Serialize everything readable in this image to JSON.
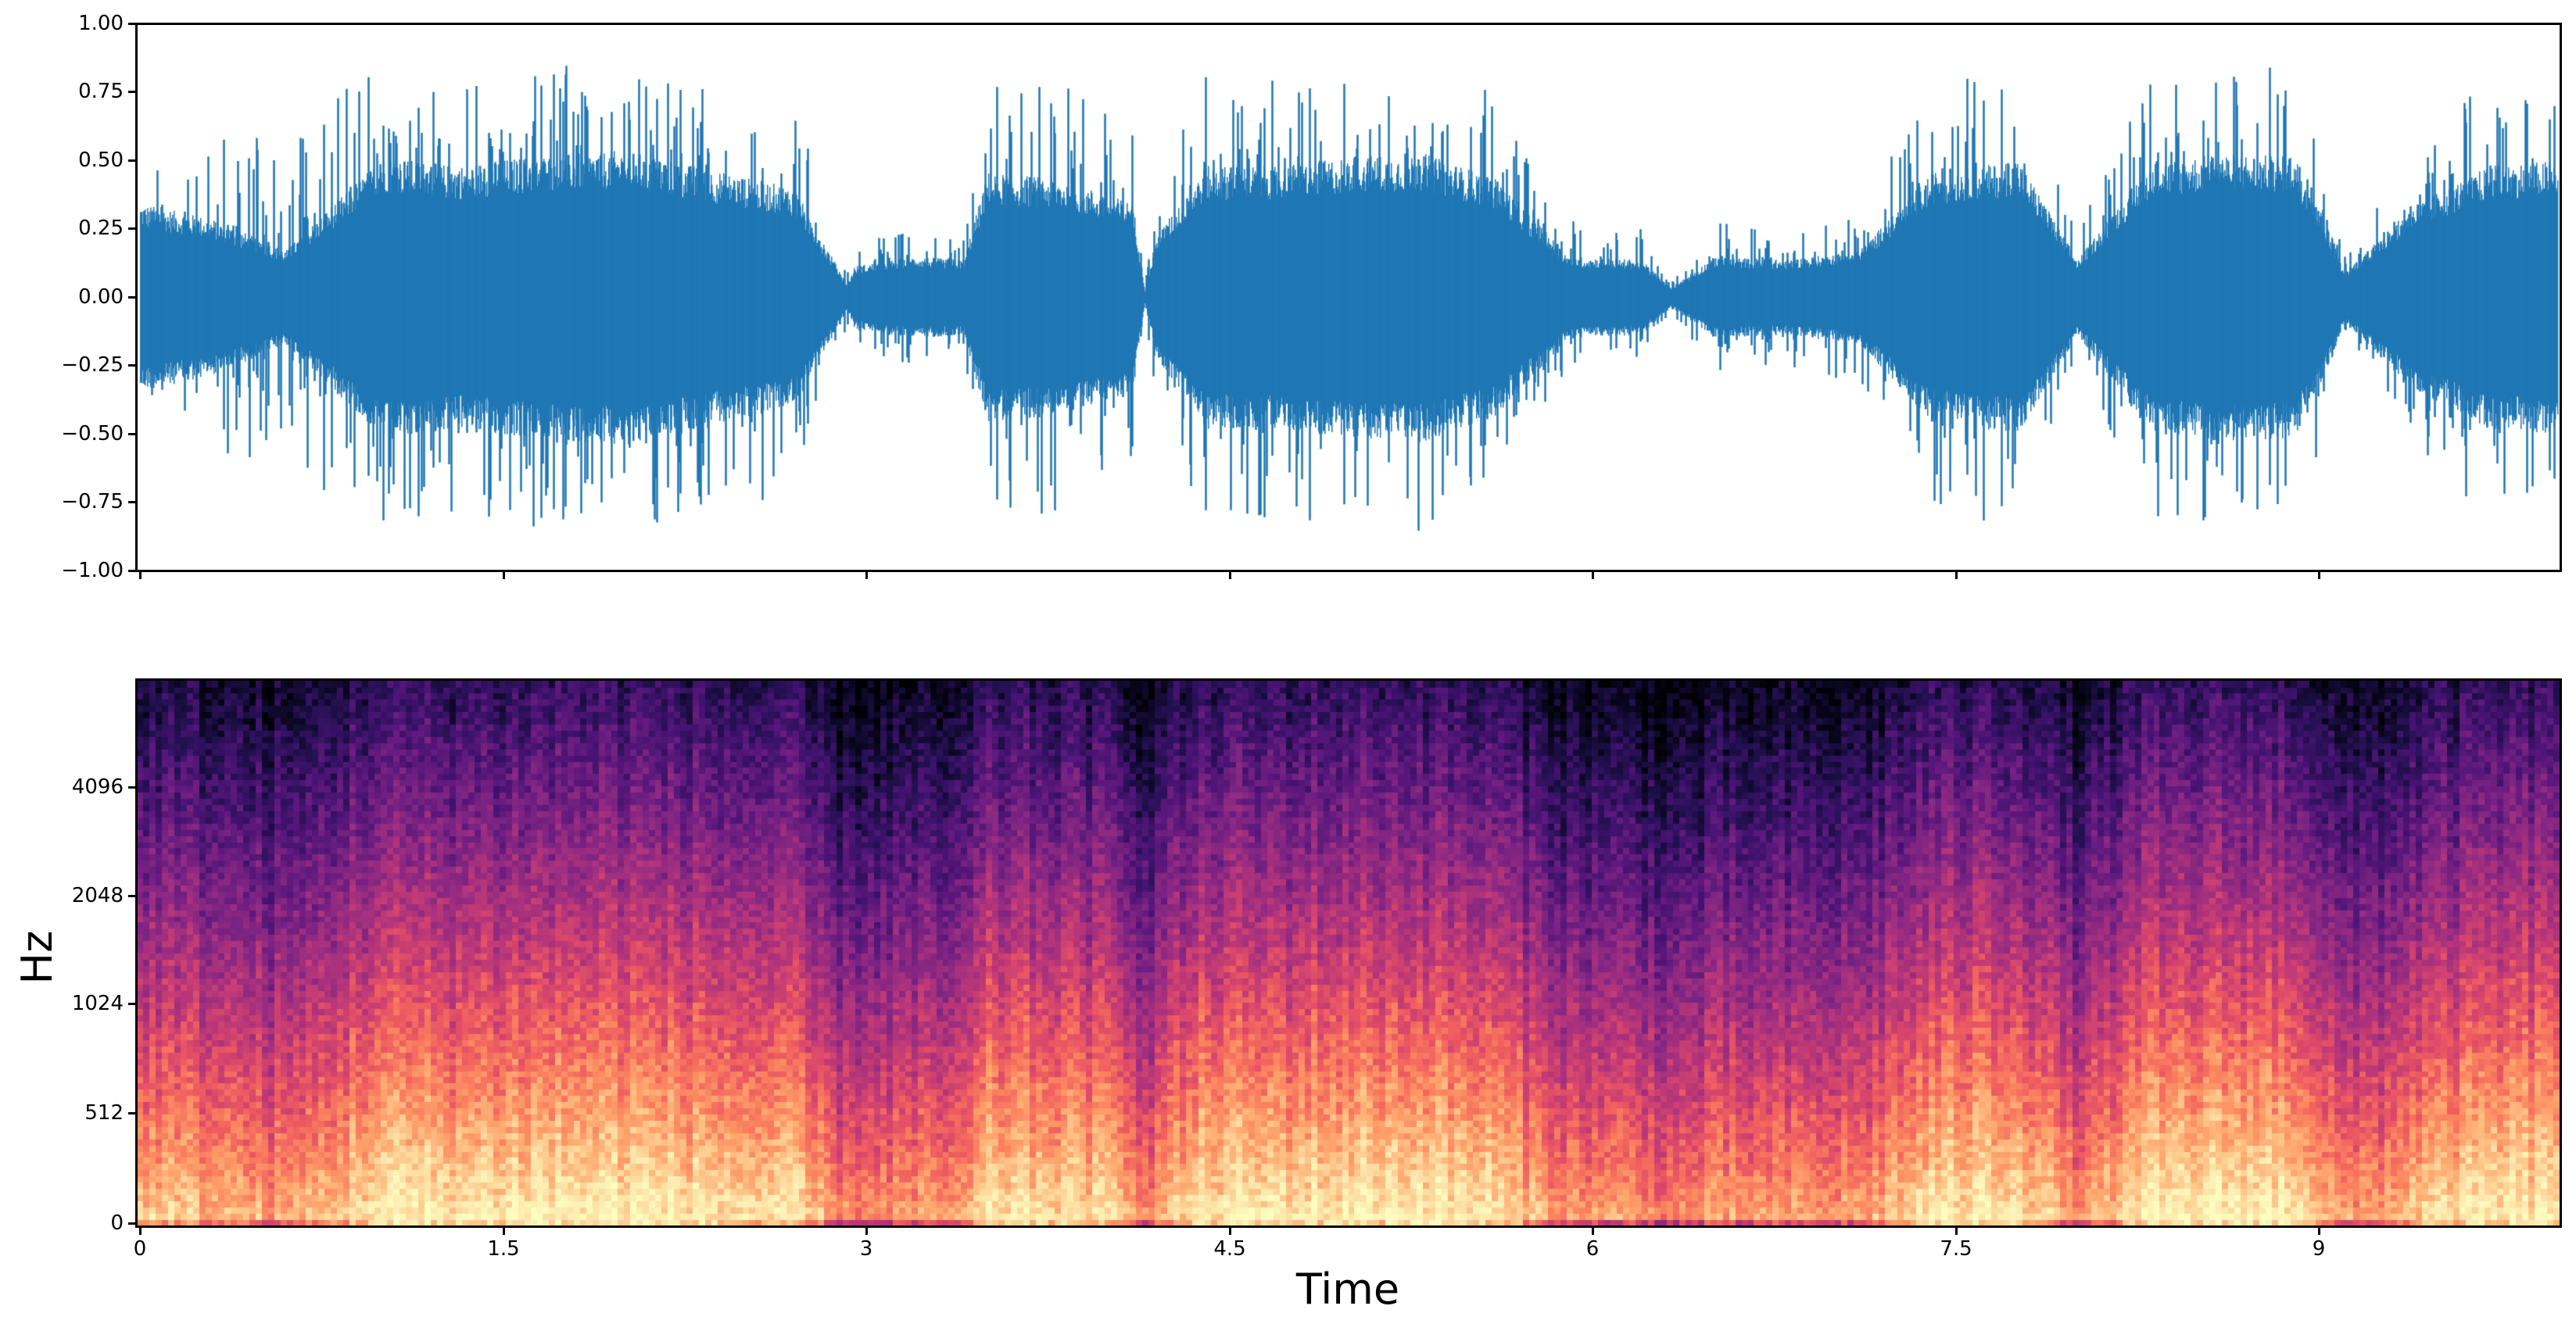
{
  "chart_data": [
    {
      "type": "line",
      "title": "",
      "xlabel": "",
      "ylabel": "",
      "description": "Audio waveform (amplitude vs time), single blue series, dense oscillation",
      "series": [
        {
          "name": "waveform",
          "color": "#1f77b4"
        }
      ],
      "xlim": [
        0,
        10.0
      ],
      "ylim": [
        -1.0,
        1.0
      ],
      "yticks": [
        1.0,
        0.75,
        0.5,
        0.25,
        0.0,
        -0.25,
        -0.5,
        -0.75,
        -1.0
      ],
      "ytick_labels": [
        "1.00",
        "0.75",
        "0.50",
        "0.25",
        "0.00",
        "−0.25",
        "−0.50",
        "−0.75",
        "−1.00"
      ],
      "xticks": [
        0,
        1.5,
        3,
        4.5,
        6,
        7.5,
        9
      ],
      "xtick_labels_visible": false,
      "envelope": {
        "t": [
          0.0,
          0.3,
          0.6,
          0.8,
          1.0,
          1.3,
          1.6,
          2.0,
          2.4,
          2.7,
          2.92,
          2.95,
          3.2,
          3.4,
          3.5,
          3.8,
          4.1,
          4.15,
          4.2,
          4.4,
          4.7,
          5.0,
          5.3,
          5.6,
          5.9,
          6.2,
          6.32,
          6.5,
          6.8,
          7.1,
          7.4,
          7.7,
          7.75,
          8.0,
          8.3,
          8.6,
          8.9,
          9.05,
          9.1,
          9.4,
          9.7,
          10.0
        ],
        "peak": [
          0.72,
          0.65,
          0.55,
          0.75,
          0.86,
          0.8,
          0.86,
          0.86,
          0.78,
          0.72,
          0.1,
          0.2,
          0.25,
          0.22,
          0.8,
          0.8,
          0.62,
          0.05,
          0.4,
          0.85,
          0.8,
          0.85,
          0.86,
          0.75,
          0.3,
          0.25,
          0.05,
          0.28,
          0.25,
          0.32,
          0.78,
          0.85,
          0.85,
          0.25,
          0.82,
          0.86,
          0.85,
          0.4,
          0.15,
          0.55,
          0.82,
          0.85
        ],
        "rms": [
          0.3,
          0.25,
          0.15,
          0.3,
          0.45,
          0.42,
          0.45,
          0.47,
          0.4,
          0.35,
          0.04,
          0.1,
          0.13,
          0.12,
          0.4,
          0.38,
          0.3,
          0.02,
          0.2,
          0.42,
          0.42,
          0.45,
          0.46,
          0.38,
          0.13,
          0.12,
          0.03,
          0.13,
          0.12,
          0.15,
          0.4,
          0.43,
          0.45,
          0.12,
          0.43,
          0.46,
          0.45,
          0.2,
          0.08,
          0.3,
          0.42,
          0.44
        ]
      }
    },
    {
      "type": "heatmap",
      "title": "",
      "xlabel": "Time",
      "ylabel": "Hz",
      "colormap": "magma",
      "description": "Mel spectrogram; bright (yellow/orange) energy concentrated below ~512 Hz, fading to purple/black above ~4096 Hz",
      "xlim": [
        0,
        10.0
      ],
      "xticks": [
        0,
        1.5,
        3,
        4.5,
        6,
        7.5,
        9
      ],
      "xtick_labels": [
        "0",
        "1.5",
        "3",
        "4.5",
        "6",
        "7.5",
        "9"
      ],
      "yticks": [
        0,
        512,
        1024,
        2048,
        4096
      ],
      "ytick_labels": [
        "0",
        "512",
        "1024",
        "2048",
        "4096"
      ],
      "y_scale": "mel",
      "n_time_frames": 388,
      "n_mel_bins": 88,
      "quiet_frames_t": [
        2.92,
        4.15,
        6.32,
        7.72,
        9.05
      ]
    }
  ],
  "labels": {
    "wave_yticks": [
      "1.00",
      "0.75",
      "0.50",
      "0.25",
      "0.00",
      "−0.25",
      "−0.50",
      "−0.75",
      "−1.00"
    ],
    "spec_yticks": [
      "4096",
      "2048",
      "1024",
      "512",
      "0"
    ],
    "xticks": [
      "0",
      "1.5",
      "3",
      "4.5",
      "6",
      "7.5",
      "9"
    ],
    "xlabel": "Time",
    "ylabel": "Hz"
  }
}
